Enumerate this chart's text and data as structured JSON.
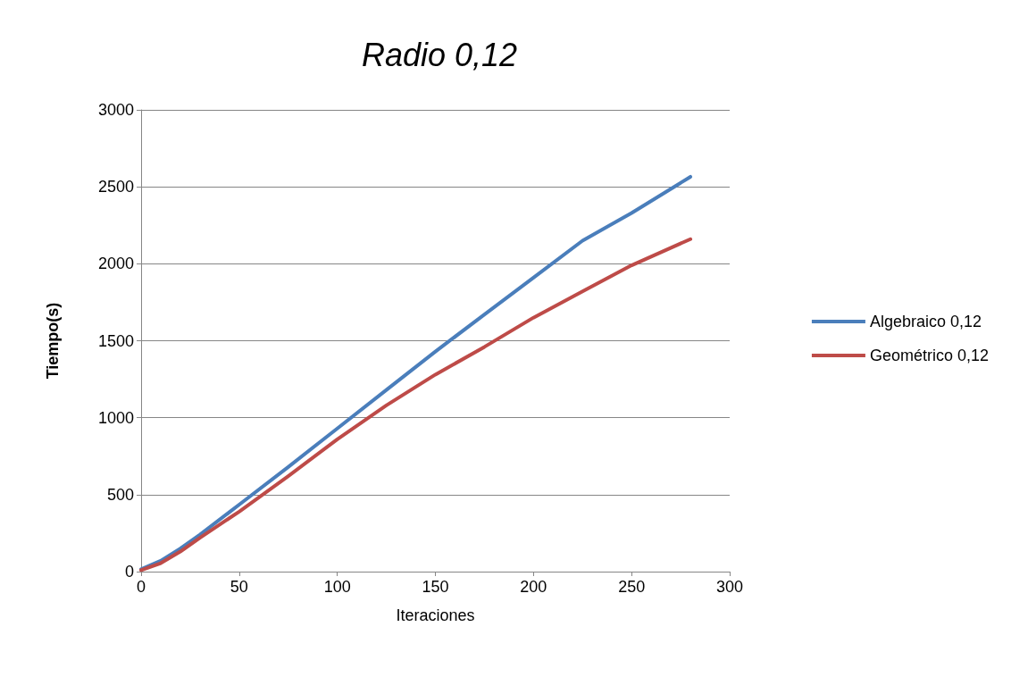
{
  "chart_data": {
    "type": "line",
    "title": "Radio 0,12",
    "xlabel": "Iteraciones",
    "ylabel": "Tiempo(s)",
    "xlim": [
      0,
      300
    ],
    "xticks": [
      0,
      50,
      100,
      150,
      200,
      250,
      300
    ],
    "ylim": [
      0,
      3000
    ],
    "yticks": [
      0,
      500,
      1000,
      1500,
      2000,
      2500,
      3000
    ],
    "grid": "y",
    "legend": "right",
    "marker": "none",
    "line_style": "solid",
    "series": [
      {
        "name": "Algebraico 0,12",
        "color": "#4a7ebb",
        "x": [
          0,
          10,
          20,
          30,
          50,
          75,
          100,
          125,
          150,
          175,
          200,
          225,
          250,
          280
        ],
        "values": [
          15,
          70,
          150,
          240,
          435,
          680,
          930,
          1180,
          1430,
          1670,
          1910,
          2150,
          2330,
          2565
        ]
      },
      {
        "name": "Geométrico 0,12",
        "color": "#be4b48",
        "x": [
          0,
          10,
          20,
          30,
          50,
          75,
          100,
          125,
          150,
          175,
          200,
          225,
          250,
          280
        ],
        "values": [
          10,
          55,
          130,
          220,
          390,
          620,
          860,
          1080,
          1280,
          1460,
          1650,
          1820,
          1990,
          2160
        ]
      }
    ]
  }
}
